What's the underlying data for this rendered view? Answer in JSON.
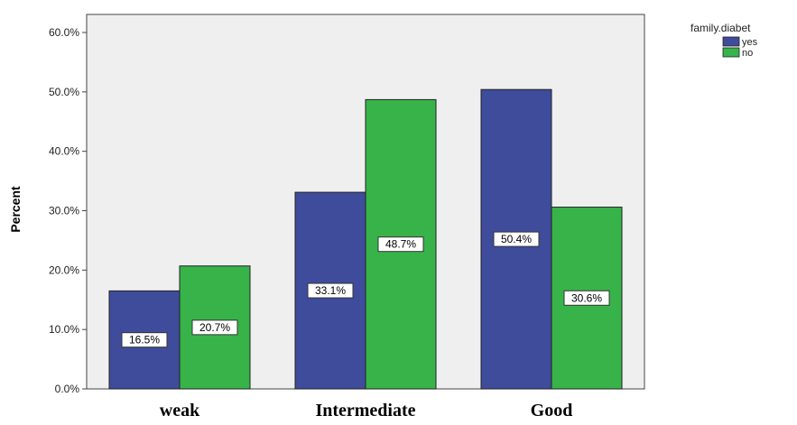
{
  "chart_data": {
    "type": "bar",
    "categories": [
      "weak",
      "Intermediate",
      "Good"
    ],
    "series": [
      {
        "name": "yes",
        "values": [
          16.5,
          33.1,
          50.4
        ],
        "labels": [
          "16.5%",
          "33.1%",
          "50.4%"
        ],
        "color": "#3f4c9c"
      },
      {
        "name": "no",
        "values": [
          20.7,
          48.7,
          30.6
        ],
        "labels": [
          "20.7%",
          "48.7%",
          "30.6%"
        ],
        "color": "#37b34a"
      }
    ],
    "ylabel": "Percent",
    "ylim": [
      0,
      60
    ],
    "yticks": [
      0,
      10,
      20,
      30,
      40,
      50,
      60
    ],
    "ytick_labels": [
      "0.0%",
      "10.0%",
      "20.0%",
      "30.0%",
      "40.0%",
      "50.0%",
      "60.0%"
    ],
    "legend_title": "family.diabet",
    "legend_position": "top-right",
    "plot_background": "#efefef",
    "grid": false
  }
}
